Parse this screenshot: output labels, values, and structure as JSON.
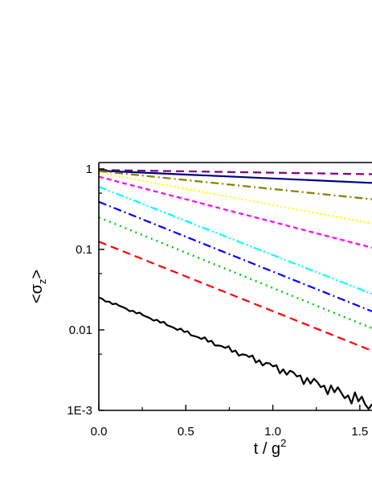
{
  "chart_data": {
    "type": "line",
    "xlabel_main": "t / g",
    "xlabel_sup": "2",
    "ylabel_open": "<σ",
    "ylabel_sub": "z",
    "ylabel_close": ">",
    "xlim": [
      0.0,
      1.57
    ],
    "ylim": [
      0.001,
      1.2
    ],
    "yscale": "log",
    "x_ticks": [
      {
        "value": 0.0,
        "label": "0.0"
      },
      {
        "value": 0.5,
        "label": "0.5"
      },
      {
        "value": 1.0,
        "label": "1.0"
      },
      {
        "value": 1.5,
        "label": "1.5"
      }
    ],
    "y_ticks": [
      {
        "value": 1,
        "label": "1"
      },
      {
        "value": 0.1,
        "label": "0.1"
      },
      {
        "value": 0.01,
        "label": "0.01"
      },
      {
        "value": 0.001,
        "label": "1E-3"
      }
    ],
    "grid": false,
    "series": [
      {
        "color": "#800080",
        "dash": "10,6",
        "width": 2.2,
        "noise": 0,
        "x": [
          0.0,
          1.57
        ],
        "y": [
          0.97,
          0.86
        ]
      },
      {
        "color": "#000080",
        "dash": "",
        "width": 2.2,
        "noise": 0,
        "x": [
          0.0,
          1.57
        ],
        "y": [
          0.95,
          0.67
        ]
      },
      {
        "color": "#808000",
        "dash": "10,4,2,4",
        "width": 2.2,
        "noise": 0,
        "x": [
          0.0,
          1.57
        ],
        "y": [
          0.94,
          0.42
        ]
      },
      {
        "color": "#FFFF00",
        "dash": "2,3",
        "width": 2.2,
        "noise": 0,
        "x": [
          0.0,
          1.57
        ],
        "y": [
          0.9,
          0.21
        ]
      },
      {
        "color": "#FF00FF",
        "dash": "6,4",
        "width": 2.2,
        "noise": 0,
        "x": [
          0.0,
          1.57
        ],
        "y": [
          0.8,
          0.105
        ]
      },
      {
        "color": "#00FFFF",
        "dash": "10,3,2,3,2,3",
        "width": 2.2,
        "noise": 0,
        "x": [
          0.0,
          1.57
        ],
        "y": [
          0.6,
          0.028
        ]
      },
      {
        "color": "#0000FF",
        "dash": "10,4,2,4",
        "width": 2.2,
        "noise": 0,
        "x": [
          0.0,
          1.57
        ],
        "y": [
          0.39,
          0.017
        ]
      },
      {
        "color": "#00CC00",
        "dash": "2,5",
        "width": 2.5,
        "noise": 0,
        "x": [
          0.0,
          1.57
        ],
        "y": [
          0.25,
          0.0105
        ]
      },
      {
        "color": "#FF0000",
        "dash": "10,6",
        "width": 2.2,
        "noise": 0,
        "x": [
          0.0,
          1.57
        ],
        "y": [
          0.125,
          0.0055
        ]
      },
      {
        "color": "#000000",
        "dash": "",
        "width": 2.2,
        "noise": 1,
        "x": [
          0.0,
          1.57
        ],
        "y": [
          0.025,
          0.00115
        ]
      }
    ]
  }
}
